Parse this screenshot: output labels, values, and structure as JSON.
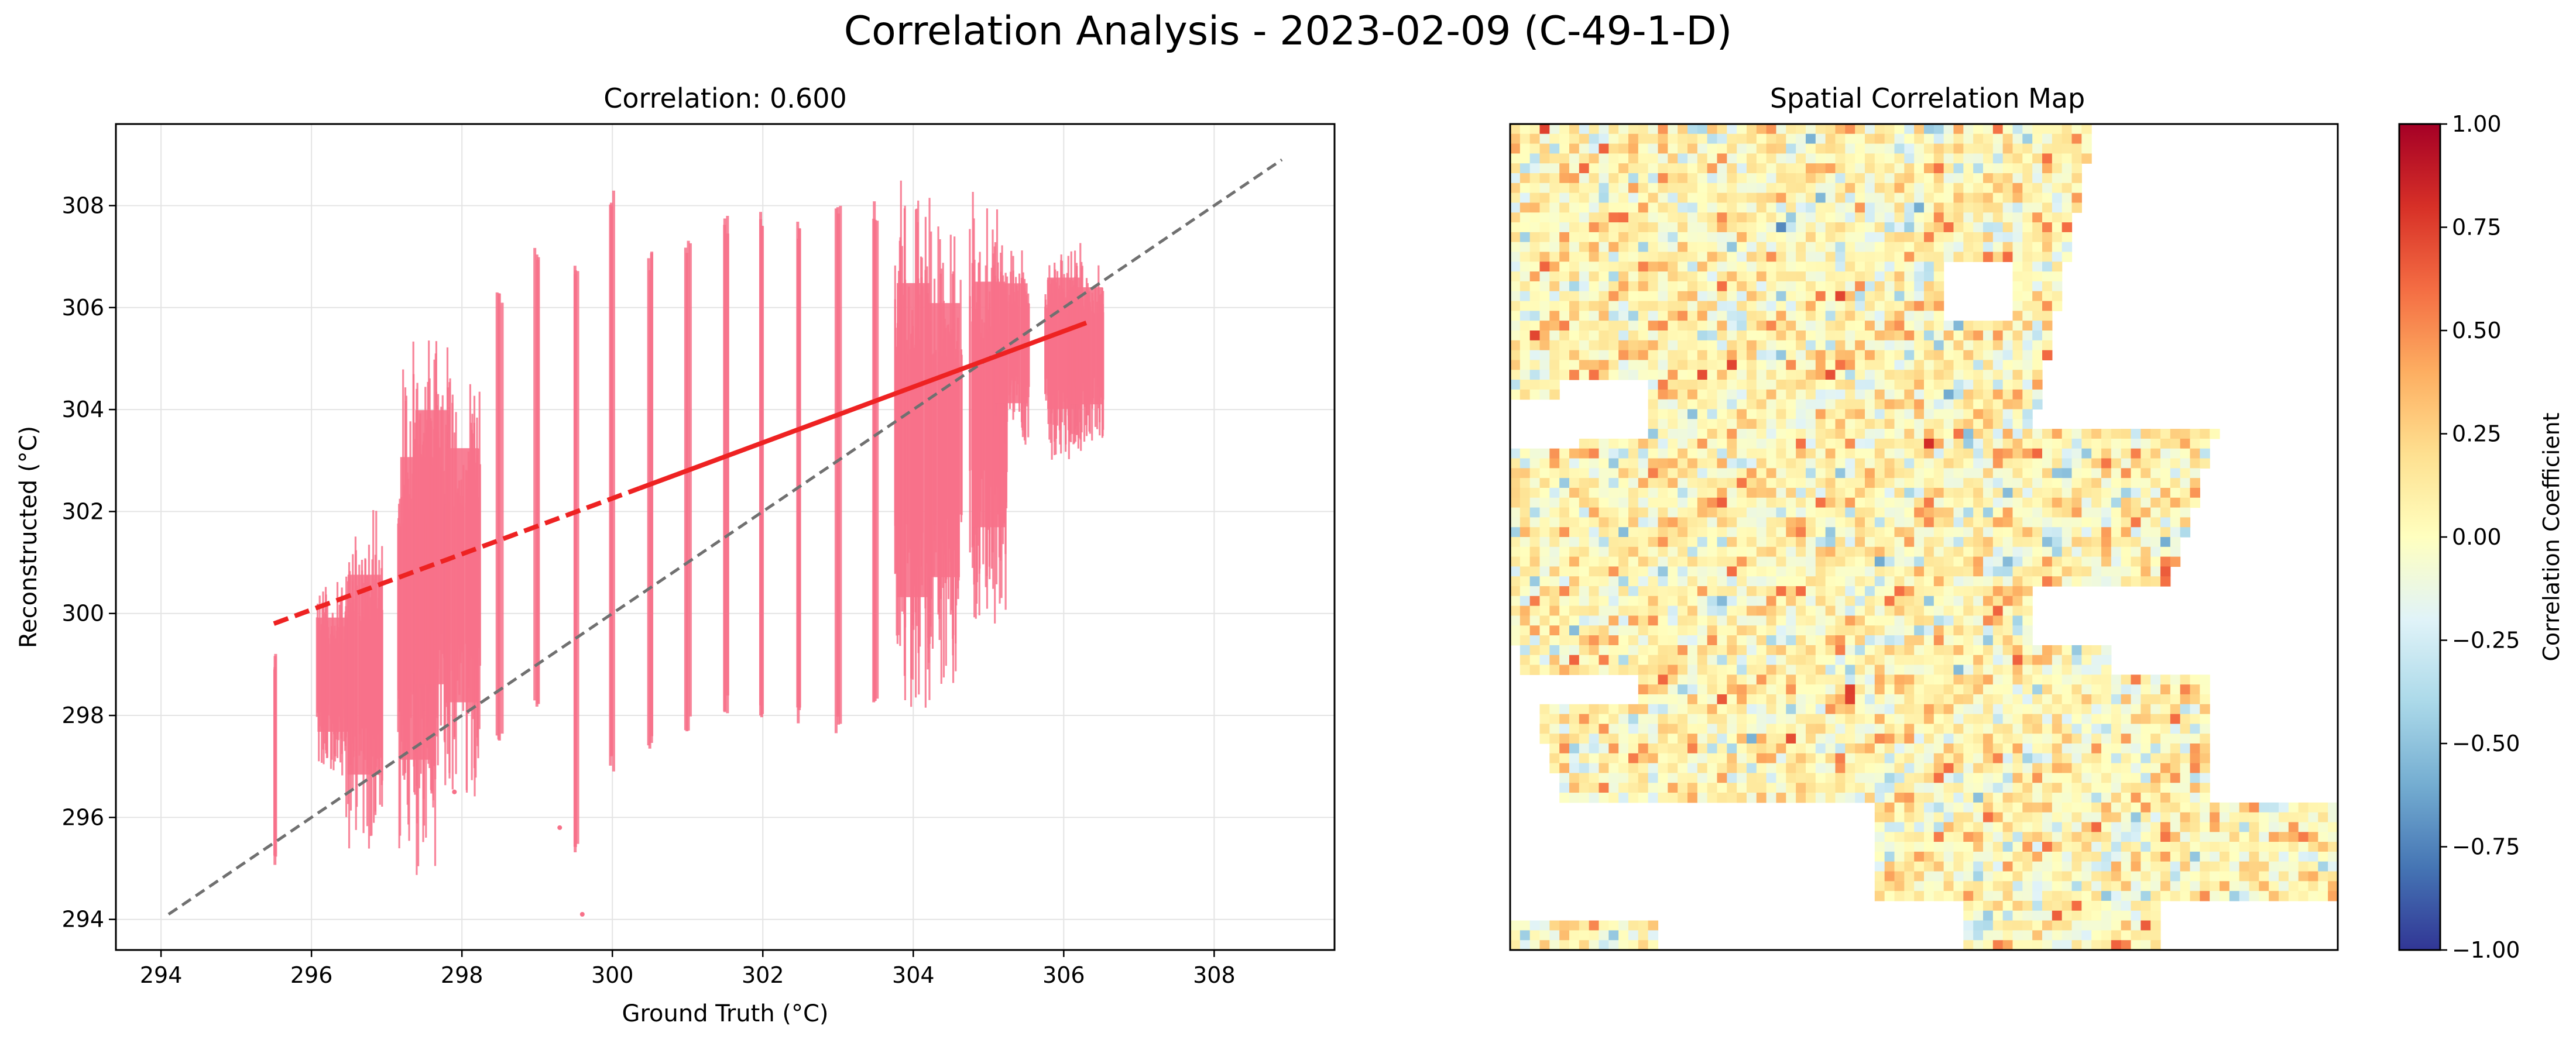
{
  "figure": {
    "title": "Correlation Analysis - 2023-02-09 (C-49-1-D)"
  },
  "colors": {
    "scatter": "#f77189",
    "fit_line": "#ee2222",
    "identity_line": "#707070",
    "grid": "#e4e4e4",
    "colormap": "RdYlBu_r"
  },
  "chart_data": [
    {
      "type": "scatter",
      "title": "Correlation: 0.600",
      "xlabel": "Ground Truth (°C)",
      "ylabel": "Reconstructed (°C)",
      "xlim": [
        293.4,
        309.6
      ],
      "ylim": [
        293.4,
        309.6
      ],
      "xticks": [
        294,
        296,
        298,
        300,
        302,
        304,
        306,
        308
      ],
      "yticks": [
        294,
        296,
        298,
        300,
        302,
        304,
        306,
        308
      ],
      "grid": true,
      "correlation": 0.6,
      "point_columns": [
        {
          "x": 295.5,
          "y_min": 295.0,
          "y_max": 299.3
        },
        {
          "x": 296.3,
          "y_min": 296.8,
          "y_max": 300.8
        },
        {
          "x": 296.7,
          "y_min": 295.3,
          "y_max": 302.3
        },
        {
          "x": 297.4,
          "y_min": 294.8,
          "y_max": 305.4
        },
        {
          "x": 297.6,
          "y_min": 296.5,
          "y_max": 306.1
        },
        {
          "x": 298.0,
          "y_min": 296.3,
          "y_max": 305.2
        },
        {
          "x": 298.5,
          "y_min": 297.5,
          "y_max": 306.4
        },
        {
          "x": 299.0,
          "y_min": 297.9,
          "y_max": 307.3
        },
        {
          "x": 299.5,
          "y_min": 295.2,
          "y_max": 307.0
        },
        {
          "x": 300.0,
          "y_min": 296.9,
          "y_max": 308.3
        },
        {
          "x": 300.5,
          "y_min": 297.2,
          "y_max": 307.1
        },
        {
          "x": 301.0,
          "y_min": 297.6,
          "y_max": 307.4
        },
        {
          "x": 301.5,
          "y_min": 298.0,
          "y_max": 307.8
        },
        {
          "x": 302.0,
          "y_min": 297.9,
          "y_max": 307.9
        },
        {
          "x": 302.5,
          "y_min": 297.8,
          "y_max": 307.7
        },
        {
          "x": 303.0,
          "y_min": 297.6,
          "y_max": 308.0
        },
        {
          "x": 303.5,
          "y_min": 298.0,
          "y_max": 308.1
        },
        {
          "x": 304.0,
          "y_min": 297.9,
          "y_max": 308.9
        },
        {
          "x": 304.4,
          "y_min": 298.6,
          "y_max": 308.2
        },
        {
          "x": 305.0,
          "y_min": 299.8,
          "y_max": 308.4
        },
        {
          "x": 305.3,
          "y_min": 303.2,
          "y_max": 307.4
        },
        {
          "x": 306.0,
          "y_min": 303.0,
          "y_max": 307.6
        },
        {
          "x": 306.3,
          "y_min": 303.2,
          "y_max": 307.3
        }
      ],
      "outliers": [
        {
          "x": 299.3,
          "y": 295.8
        },
        {
          "x": 299.6,
          "y": 294.1
        },
        {
          "x": 297.9,
          "y": 296.5
        }
      ],
      "fit_line": {
        "x": [
          295.5,
          306.3
        ],
        "y": [
          299.8,
          305.7
        ],
        "style": "dashed then solid"
      },
      "identity_line": {
        "x": [
          294.1,
          308.9
        ],
        "y": [
          294.1,
          308.9
        ],
        "style": "dashed"
      }
    },
    {
      "type": "heatmap",
      "title": "Spatial Correlation Map",
      "colorbar_label": "Correlation Coefficient",
      "vmin": -1.0,
      "vmax": 1.0,
      "colorbar_ticks": [
        "1.00",
        "0.75",
        "0.50",
        "0.25",
        "0.00",
        "−0.25",
        "−0.50",
        "−0.75",
        "−1.00"
      ],
      "grid_cols": 84,
      "grid_rows": 84,
      "values_note": "per-pixel correlation values in [-1, 1]"
    }
  ]
}
